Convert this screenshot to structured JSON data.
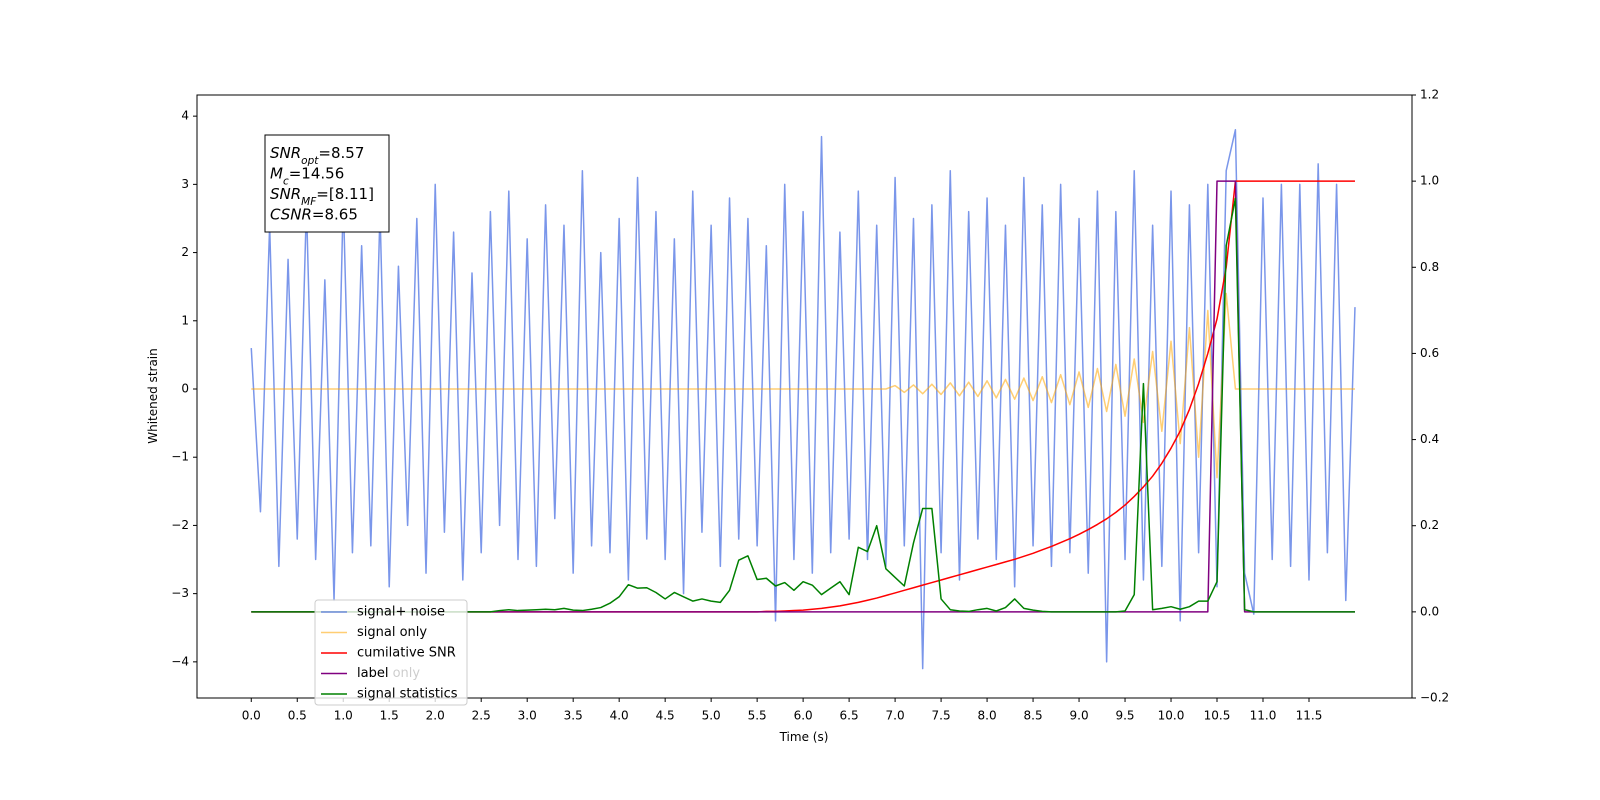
{
  "chart_data": {
    "type": "line",
    "x_label": "Time (s)",
    "y_label": "Whitened strain",
    "xlim": [
      -0.59,
      12.62
    ],
    "ylim": [
      -4.53,
      4.31
    ],
    "y2lim": [
      -0.2,
      1.2
    ],
    "xticks": [
      {
        "value": 0,
        "label": "0.0"
      },
      0.5,
      {
        "value": 1,
        "label": "1.0"
      },
      1.5,
      {
        "value": 2,
        "label": "2.0"
      },
      2.5,
      {
        "value": 3,
        "label": "3.0"
      },
      3.5,
      {
        "value": 4,
        "label": "4.0"
      },
      4.5,
      {
        "value": 5,
        "label": "5.0"
      },
      5.5,
      {
        "value": 6,
        "label": "6.0"
      },
      6.5,
      {
        "value": 7,
        "label": "7.0"
      },
      7.5,
      {
        "value": 8,
        "label": "8.0"
      },
      8.5,
      {
        "value": 9,
        "label": "9.0"
      },
      9.5,
      {
        "value": 10,
        "label": "10.0"
      },
      10.5,
      {
        "value": 11,
        "label": "11.0"
      },
      11.5
    ],
    "yticks": [
      {
        "value": -4,
        "label": "−4"
      },
      {
        "value": -3,
        "label": "−3"
      },
      {
        "value": -2,
        "label": "−2"
      },
      {
        "value": -1,
        "label": "−1"
      },
      0,
      1,
      2,
      3,
      4
    ],
    "y2ticks": [
      {
        "value": -0.2,
        "label": "−0.2"
      },
      {
        "value": 0,
        "label": "0.0"
      },
      0.2,
      0.4,
      0.6,
      0.8,
      {
        "value": 1,
        "label": "1.0"
      },
      1.2
    ],
    "legend": "lower left",
    "x": [
      0,
      0.1,
      0.2,
      0.3,
      0.4,
      0.5,
      0.6,
      0.7,
      0.8,
      0.9,
      1,
      1.1,
      1.2,
      1.3,
      1.4,
      1.5,
      1.6,
      1.7,
      1.8,
      1.9,
      2,
      2.1,
      2.2,
      2.3,
      2.4,
      2.5,
      2.6,
      2.7,
      2.8,
      2.9,
      3,
      3.1,
      3.2,
      3.3,
      3.4,
      3.5,
      3.6,
      3.7,
      3.8,
      3.9,
      4,
      4.1,
      4.2,
      4.3,
      4.4,
      4.5,
      4.6,
      4.7,
      4.8,
      4.9,
      5,
      5.1,
      5.2,
      5.3,
      5.4,
      5.5,
      5.6,
      5.7,
      5.8,
      5.9,
      6,
      6.1,
      6.2,
      6.3,
      6.4,
      6.5,
      6.6,
      6.7,
      6.8,
      6.9,
      7,
      7.1,
      7.2,
      7.3,
      7.4,
      7.5,
      7.6,
      7.7,
      7.8,
      7.9,
      8,
      8.1,
      8.2,
      8.3,
      8.4,
      8.5,
      8.6,
      8.7,
      8.8,
      8.9,
      9,
      9.1,
      9.2,
      9.3,
      9.4,
      9.5,
      9.6,
      9.7,
      9.8,
      9.9,
      10,
      10.1,
      10.2,
      10.3,
      10.4,
      10.5,
      10.6,
      10.7,
      10.8,
      10.9,
      11,
      11.1,
      11.2,
      11.3,
      11.4,
      11.5,
      11.6,
      11.7,
      11.8,
      11.9,
      12
    ],
    "series": [
      {
        "name": "signal+ noise",
        "color": "#4169e1",
        "alpha": 0.7,
        "axis": "y",
        "values": [
          0.6,
          -1.8,
          2.4,
          -2.6,
          1.9,
          -2.2,
          2.7,
          -2.5,
          1.6,
          -3.1,
          2.8,
          -2.4,
          2.1,
          -2.3,
          2.6,
          -2.9,
          1.8,
          -2.0,
          2.5,
          -2.7,
          3.0,
          -2.1,
          2.3,
          -2.8,
          1.7,
          -2.4,
          2.6,
          -2.0,
          2.9,
          -2.5,
          2.2,
          -2.6,
          2.7,
          -1.9,
          2.4,
          -2.7,
          3.2,
          -2.3,
          2.0,
          -2.4,
          2.5,
          -2.8,
          3.1,
          -2.2,
          2.6,
          -2.5,
          2.2,
          -3.0,
          2.9,
          -2.1,
          2.4,
          -2.6,
          2.8,
          -2.2,
          2.5,
          -2.3,
          2.1,
          -3.4,
          3.0,
          -2.5,
          2.6,
          -2.7,
          3.7,
          -2.4,
          2.3,
          -2.2,
          2.9,
          -2.5,
          2.4,
          -2.6,
          3.1,
          -2.3,
          2.5,
          -4.1,
          2.7,
          -2.4,
          3.2,
          -2.8,
          2.6,
          -2.2,
          2.8,
          -2.5,
          2.4,
          -2.9,
          3.1,
          -2.3,
          2.7,
          -2.6,
          3.0,
          -2.4,
          2.5,
          -2.7,
          2.9,
          -4.0,
          2.6,
          -2.5,
          3.2,
          -2.8,
          2.4,
          -2.6,
          2.9,
          -3.4,
          2.7,
          -2.4,
          3.0,
          -2.9,
          3.2,
          3.8,
          -2.7,
          -3.3,
          2.8,
          -2.5,
          3.0,
          -2.6,
          3.0,
          -2.8,
          3.3,
          -2.4,
          3.0,
          -3.1,
          1.2
        ]
      },
      {
        "name": "signal only",
        "color": "#ffa500",
        "alpha": 0.55,
        "axis": "y",
        "values": [
          0,
          0,
          0,
          0,
          0,
          0,
          0,
          0,
          0,
          0,
          0,
          0,
          0,
          0,
          0,
          0,
          0,
          0,
          0,
          0,
          0,
          0,
          0,
          0,
          0,
          0,
          0,
          0,
          0,
          0,
          0,
          0,
          0,
          0,
          0,
          0,
          0,
          0,
          0,
          0,
          0,
          0,
          0,
          0,
          0,
          0,
          0,
          0,
          0,
          0,
          0,
          0,
          0,
          0,
          0,
          0,
          0,
          0,
          0,
          0,
          0,
          0,
          0,
          0,
          0,
          0,
          0,
          0,
          0,
          0,
          0.05,
          -0.05,
          0.06,
          -0.07,
          0.07,
          -0.08,
          0.09,
          -0.1,
          0.1,
          -0.11,
          0.12,
          -0.13,
          0.14,
          -0.15,
          0.16,
          -0.17,
          0.18,
          -0.2,
          0.21,
          -0.23,
          0.25,
          -0.27,
          0.3,
          -0.33,
          0.36,
          -0.4,
          0.44,
          -0.49,
          0.55,
          -0.62,
          0.7,
          -0.8,
          0.9,
          -1.0,
          1.15,
          -1.3,
          1.4,
          0,
          0,
          0,
          0,
          0,
          0,
          0,
          0,
          0,
          0,
          0,
          0,
          0,
          0
        ]
      },
      {
        "name": "cumilative SNR",
        "color": "#ff0000",
        "alpha": 1,
        "axis": "y2",
        "values": [
          0,
          0,
          0,
          0,
          0,
          0,
          0,
          0,
          0,
          0,
          0,
          0,
          0,
          0,
          0,
          0,
          0,
          0,
          0,
          0,
          0,
          0,
          0,
          0,
          0,
          0,
          0,
          0,
          0,
          0,
          0,
          0,
          0,
          0,
          0,
          0,
          0,
          0,
          0,
          0,
          0,
          0,
          0,
          0,
          0,
          0,
          0,
          0,
          0,
          0,
          0,
          0,
          0,
          0,
          0,
          0,
          0.001,
          0.001,
          0.002,
          0.003,
          0.004,
          0.006,
          0.008,
          0.011,
          0.014,
          0.018,
          0.022,
          0.027,
          0.032,
          0.038,
          0.044,
          0.05,
          0.056,
          0.062,
          0.068,
          0.074,
          0.08,
          0.086,
          0.092,
          0.098,
          0.104,
          0.11,
          0.116,
          0.122,
          0.129,
          0.136,
          0.144,
          0.152,
          0.161,
          0.17,
          0.18,
          0.191,
          0.203,
          0.216,
          0.231,
          0.248,
          0.268,
          0.29,
          0.315,
          0.345,
          0.38,
          0.42,
          0.47,
          0.53,
          0.6,
          0.68,
          0.8,
          1,
          1,
          1,
          1,
          1,
          1,
          1,
          1,
          1,
          1,
          1,
          1,
          1,
          1
        ]
      },
      {
        "name": "label",
        "color": "#800080",
        "alpha": 1,
        "axis": "y2",
        "values": [
          0,
          0,
          0,
          0,
          0,
          0,
          0,
          0,
          0,
          0,
          0,
          0,
          0,
          0,
          0,
          0,
          0,
          0,
          0,
          0,
          0,
          0,
          0,
          0,
          0,
          0,
          0,
          0,
          0,
          0,
          0,
          0,
          0,
          0,
          0,
          0,
          0,
          0,
          0,
          0,
          0,
          0,
          0,
          0,
          0,
          0,
          0,
          0,
          0,
          0,
          0,
          0,
          0,
          0,
          0,
          0,
          0,
          0,
          0,
          0,
          0,
          0,
          0,
          0,
          0,
          0,
          0,
          0,
          0,
          0,
          0,
          0,
          0,
          0,
          0,
          0,
          0,
          0,
          0,
          0,
          0,
          0,
          0,
          0,
          0,
          0,
          0,
          0,
          0,
          0,
          0,
          0,
          0,
          0,
          0,
          0,
          0,
          0,
          0,
          0,
          0,
          0,
          0,
          0,
          0,
          1,
          1,
          1,
          0,
          0,
          0,
          0,
          0,
          0,
          0,
          0,
          0,
          0,
          0,
          0,
          0
        ]
      },
      {
        "name": "signal statistics",
        "color": "#008000",
        "alpha": 1,
        "axis": "y2",
        "values": [
          0,
          0,
          0,
          0,
          0,
          0,
          0,
          0,
          0,
          0,
          0,
          0,
          0,
          0,
          0,
          0,
          0,
          0,
          0,
          0,
          0,
          0,
          0,
          0,
          0,
          0,
          0,
          0.003,
          0.005,
          0.003,
          0.004,
          0.005,
          0.006,
          0.005,
          0.008,
          0.004,
          0.003,
          0.006,
          0.01,
          0.02,
          0.035,
          0.063,
          0.055,
          0.056,
          0.045,
          0.03,
          0.045,
          0.035,
          0.025,
          0.03,
          0.025,
          0.022,
          0.05,
          0.12,
          0.13,
          0.075,
          0.078,
          0.06,
          0.068,
          0.05,
          0.07,
          0.062,
          0.04,
          0.055,
          0.07,
          0.04,
          0.15,
          0.14,
          0.2,
          0.1,
          0.08,
          0.06,
          0.16,
          0.24,
          0.24,
          0.03,
          0.005,
          0.002,
          0.001,
          0.005,
          0.008,
          0.002,
          0.01,
          0.03,
          0.008,
          0.004,
          0.001,
          0,
          0,
          0,
          0,
          0,
          0,
          0,
          0,
          0.002,
          0.04,
          0.53,
          0.005,
          0.008,
          0.012,
          0.006,
          0.012,
          0.025,
          0.025,
          0.07,
          0.85,
          0.96,
          0.005,
          0,
          0,
          0,
          0,
          0,
          0,
          0,
          0,
          0,
          0,
          0,
          0
        ]
      }
    ],
    "annotations": [
      {
        "main": "SNR",
        "sub": "opt",
        "rest": "=8.57"
      },
      {
        "main": "M",
        "sub": "c",
        "rest": "=14.56"
      },
      {
        "main": "SNR",
        "sub": "MF",
        "rest": "=[8.11]"
      },
      {
        "main": "CSNR",
        "rest": "=8.65"
      }
    ],
    "faded_legend_text": "label only"
  }
}
